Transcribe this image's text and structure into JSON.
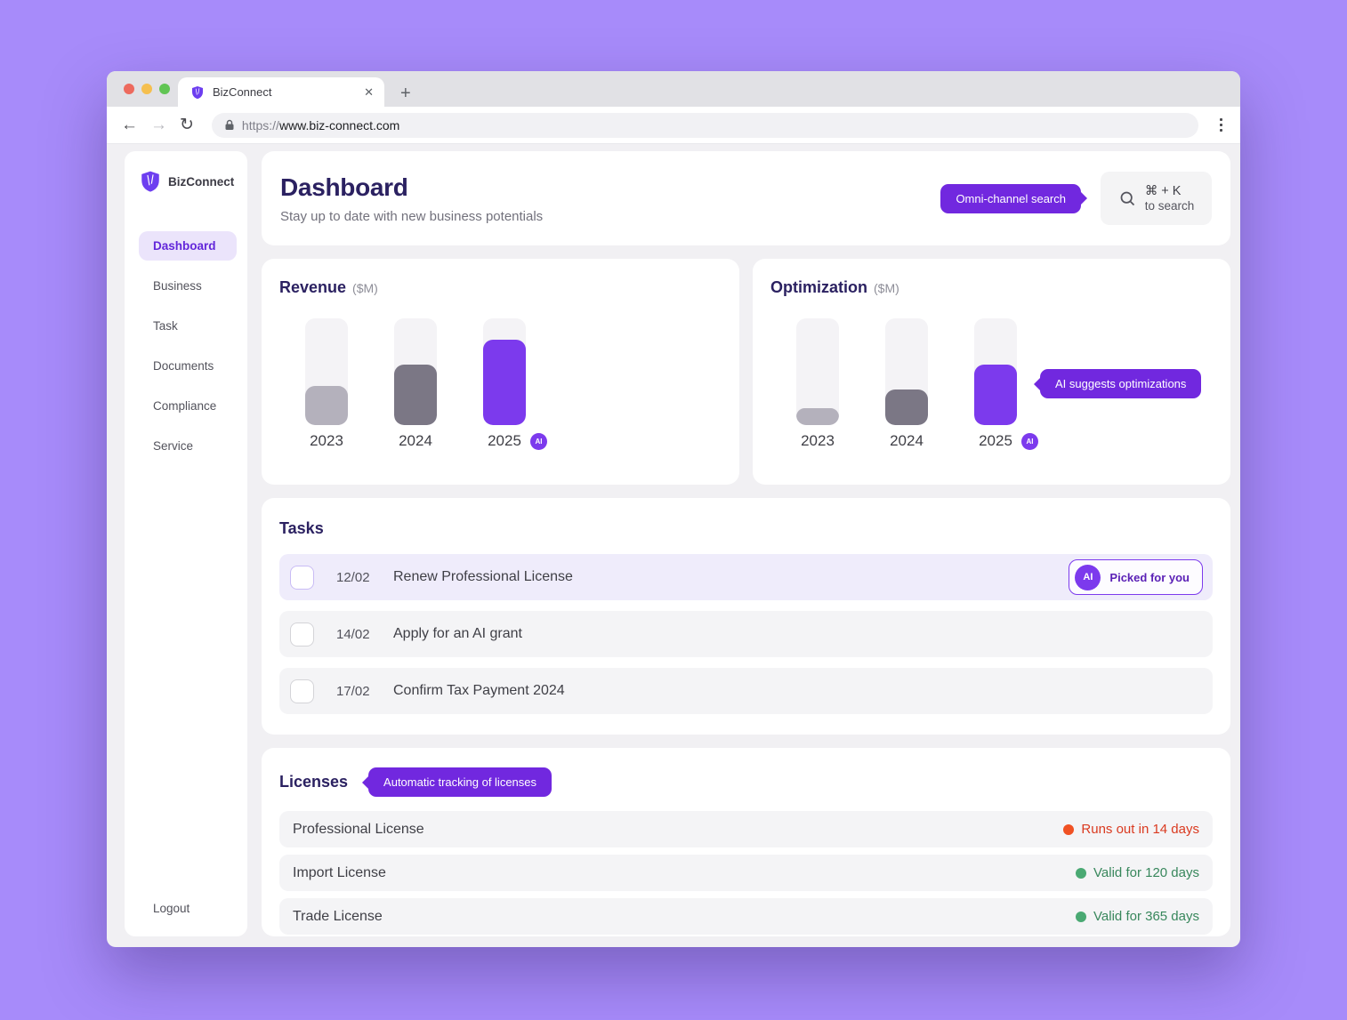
{
  "browser": {
    "tab_title": "BizConnect",
    "close_tab": "✕",
    "new_tab": "+",
    "back": "←",
    "forward": "→",
    "reload": "↻",
    "url_protocol": "https://",
    "url_host": "www.biz-connect.com"
  },
  "sidebar": {
    "brand": "BizConnect",
    "items": [
      {
        "label": "Dashboard",
        "active": true
      },
      {
        "label": "Business",
        "active": false
      },
      {
        "label": "Task",
        "active": false
      },
      {
        "label": "Documents",
        "active": false
      },
      {
        "label": "Compliance",
        "active": false
      },
      {
        "label": "Service",
        "active": false
      }
    ],
    "logout_label": "Logout"
  },
  "header": {
    "title": "Dashboard",
    "subtitle": "Stay up to date with new business potentials",
    "search_tooltip": "Omni-channel search",
    "search_shortcut": "⌘ + K",
    "search_hint": "to search"
  },
  "badges": {
    "ai": "AI"
  },
  "chart_data": [
    {
      "type": "bar",
      "title": "Revenue",
      "unit_label": "($M)",
      "categories": [
        "2023",
        "2024",
        "2025"
      ],
      "values_percent_of_track": [
        37,
        57,
        80
      ],
      "bar_colors": [
        "#b4b1bc",
        "#7b7785",
        "#7c3aed"
      ],
      "track_color": "#f4f3f6",
      "ai_badge_on": "2025",
      "legend": "none",
      "axis_labels": "none"
    },
    {
      "type": "bar",
      "title": "Optimization",
      "unit_label": "($M)",
      "categories": [
        "2023",
        "2024",
        "2025"
      ],
      "values_percent_of_track": [
        16,
        33,
        57
      ],
      "bar_colors": [
        "#b4b1bc",
        "#7b7785",
        "#7c3aed"
      ],
      "track_color": "#f4f3f6",
      "ai_badge_on": "2025",
      "tooltip": "AI suggests optimizations",
      "legend": "none",
      "axis_labels": "none"
    }
  ],
  "tasks": {
    "title": "Tasks",
    "items": [
      {
        "date": "12/02",
        "title": "Renew Professional License",
        "badge": "Picked for you",
        "highlighted": "true"
      },
      {
        "date": "14/02",
        "title": "Apply for an AI grant",
        "badge": "",
        "highlighted": "false"
      },
      {
        "date": "17/02",
        "title": "Confirm Tax Payment 2024",
        "badge": "",
        "highlighted": "false"
      }
    ]
  },
  "licenses": {
    "title": "Licenses",
    "tooltip": "Automatic tracking of licenses",
    "items": [
      {
        "name": "Professional License",
        "status": "Runs out in 14 days",
        "status_type": "warning"
      },
      {
        "name": "Import License",
        "status": "Valid for 120 days",
        "status_type": "ok"
      },
      {
        "name": "Trade License",
        "status": "Valid for 365 days",
        "status_type": "ok"
      }
    ]
  },
  "colors": {
    "page_background": "#a78bfa",
    "accent_purple": "#7c3aed",
    "tooltip_purple": "#7128df",
    "status_warning_text": "#da3a20",
    "status_warning_dot": "#f05123",
    "status_ok_text": "#38875c",
    "status_ok_dot": "#4aa973",
    "heading_dark": "#2b2161"
  }
}
